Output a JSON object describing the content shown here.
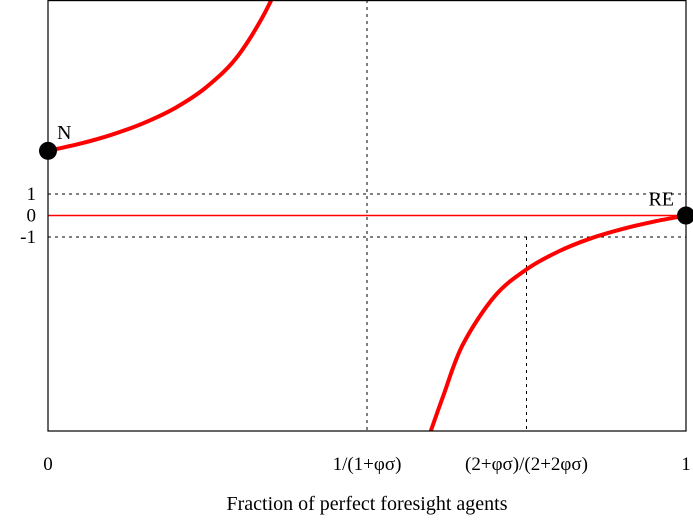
{
  "chart_data": {
    "type": "line",
    "title": "",
    "xlabel": "Fraction of perfect foresight agents",
    "ylabel": "",
    "xlim": [
      0,
      1
    ],
    "ylim": [
      -10,
      10
    ],
    "grid": "dashed reference lines only",
    "x_ticks": [
      {
        "value": 0,
        "label": "0"
      },
      {
        "value": 0.5,
        "label": "1/(1+φσ)"
      },
      {
        "value": 0.75,
        "label": "(2+φσ)/(2+2φσ)"
      },
      {
        "value": 1,
        "label": "1"
      }
    ],
    "y_ticks": [
      {
        "value": 1,
        "label": "1"
      },
      {
        "value": 0,
        "label": "0"
      },
      {
        "value": -1,
        "label": "-1"
      }
    ],
    "reference_lines": {
      "horizontal": [
        1,
        -1
      ],
      "vertical": [
        0.5,
        0.75
      ],
      "zero_line_color": "#ff0000"
    },
    "series": [
      {
        "color": "#ff0000",
        "x": [
          0,
          0.05,
          0.1,
          0.15,
          0.2,
          0.25,
          0.3,
          0.35,
          0.38
        ],
        "y": [
          3,
          3.33,
          3.75,
          4.29,
          5,
          6,
          7.5,
          10,
          12.5
        ]
      },
      {
        "color": "#ff0000",
        "x": [
          0.6,
          0.62,
          0.65,
          0.7,
          0.75,
          0.8,
          0.85,
          0.9,
          0.95,
          1
        ],
        "y": [
          -10,
          -8.33,
          -6,
          -3.75,
          -2.5,
          -1.67,
          -1.07,
          -0.63,
          -0.28,
          0
        ]
      }
    ],
    "points": [
      {
        "label": "N",
        "x": 0,
        "y": 3
      },
      {
        "label": "RE",
        "x": 1,
        "y": 0
      }
    ]
  }
}
